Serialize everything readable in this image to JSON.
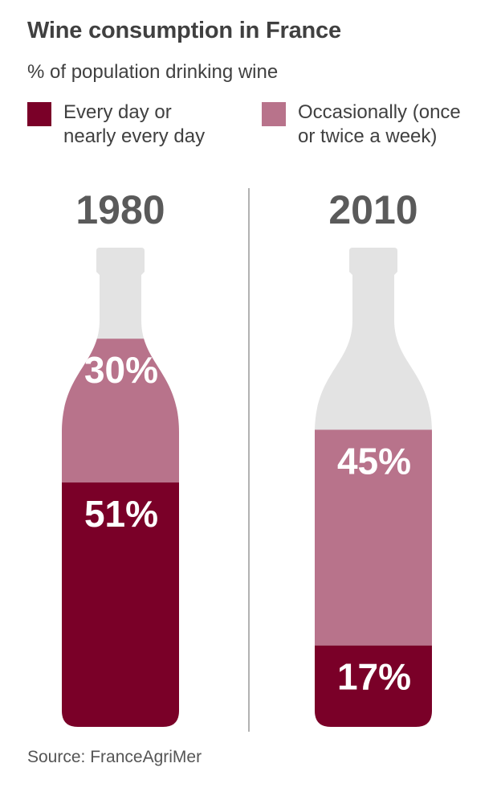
{
  "title": "Wine consumption in France",
  "subtitle": "% of population drinking wine",
  "legend": [
    {
      "label": "Every day or\nnearly every day",
      "color": "#7a0028"
    },
    {
      "label": "Occasionally (once\nor twice a week)",
      "color": "#b8738b"
    }
  ],
  "source": "Source: FranceAgriMer",
  "colors": {
    "bottle": "#e3e3e3",
    "divider": "#999999",
    "year_text": "#5a5a5a",
    "value_text": "#ffffff"
  },
  "chart_data": {
    "type": "bar",
    "stacked": true,
    "categories": [
      "1980",
      "2010"
    ],
    "series": [
      {
        "name": "Every day or nearly every day",
        "values": [
          51,
          17
        ]
      },
      {
        "name": "Occasionally (once or twice a week)",
        "values": [
          30,
          45
        ]
      }
    ],
    "value_labels": {
      "Every day or nearly every day": [
        "51%",
        "17%"
      ],
      "Occasionally (once or twice a week)": [
        "30%",
        "45%"
      ]
    },
    "ylim": [
      0,
      100
    ],
    "title": "Wine consumption in France",
    "subtitle": "% of population drinking wine",
    "xlabel": "",
    "ylabel": "",
    "grid": false,
    "legend_position": "top"
  }
}
